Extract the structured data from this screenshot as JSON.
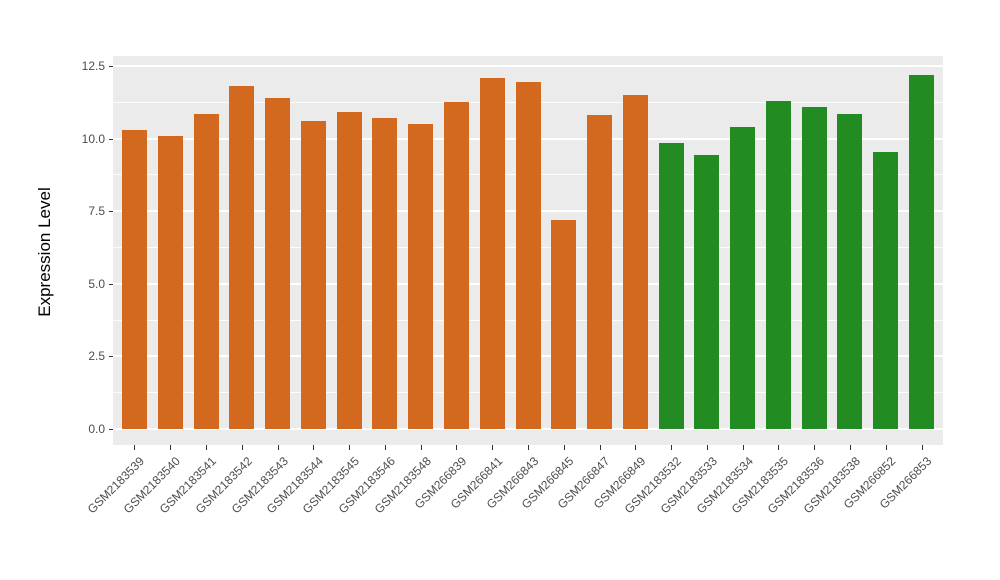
{
  "figure": {
    "background": "#FFFFFF"
  },
  "chart_data": {
    "type": "bar",
    "title": "",
    "xlabel": "",
    "ylabel": "Expression Level",
    "ylim": [
      0,
      12.8
    ],
    "grid": true,
    "legend": false,
    "panel_background": "#EBEBEB",
    "gridline_color": "#FFFFFF",
    "tick_text_color": "#4D4D4D",
    "axis_title_color": "#000000",
    "bar_palette": {
      "orange": "#D2691E",
      "green": "#228B22"
    },
    "yticks": [
      {
        "value": 0,
        "label": "0.0"
      },
      {
        "value": 2.5,
        "label": "2.5"
      },
      {
        "value": 5,
        "label": "5.0"
      },
      {
        "value": 7.5,
        "label": "7.5"
      },
      {
        "value": 10,
        "label": "10.0"
      },
      {
        "value": 12.5,
        "label": "12.5"
      }
    ],
    "yticks_minor": [
      1.25,
      3.75,
      6.25,
      8.75,
      11.25
    ],
    "categories": [
      "GSM2183539",
      "GSM2183540",
      "GSM2183541",
      "GSM2183542",
      "GSM2183543",
      "GSM2183544",
      "GSM2183545",
      "GSM2183546",
      "GSM2183548",
      "GSM266839",
      "GSM266841",
      "GSM266843",
      "GSM266845",
      "GSM266847",
      "GSM266849",
      "GSM2183532",
      "GSM2183533",
      "GSM2183534",
      "GSM2183535",
      "GSM2183536",
      "GSM2183538",
      "GSM266852",
      "GSM266853"
    ],
    "values": [
      10.3,
      10.1,
      10.85,
      11.8,
      11.4,
      10.6,
      10.9,
      10.7,
      10.5,
      11.25,
      12.1,
      11.95,
      7.2,
      10.8,
      11.5,
      9.85,
      9.45,
      10.4,
      11.3,
      11.1,
      10.85,
      9.55,
      12.2
    ],
    "colors": [
      "#D2691E",
      "#D2691E",
      "#D2691E",
      "#D2691E",
      "#D2691E",
      "#D2691E",
      "#D2691E",
      "#D2691E",
      "#D2691E",
      "#D2691E",
      "#D2691E",
      "#D2691E",
      "#D2691E",
      "#D2691E",
      "#D2691E",
      "#228B22",
      "#228B22",
      "#228B22",
      "#228B22",
      "#228B22",
      "#228B22",
      "#228B22",
      "#228B22"
    ]
  }
}
